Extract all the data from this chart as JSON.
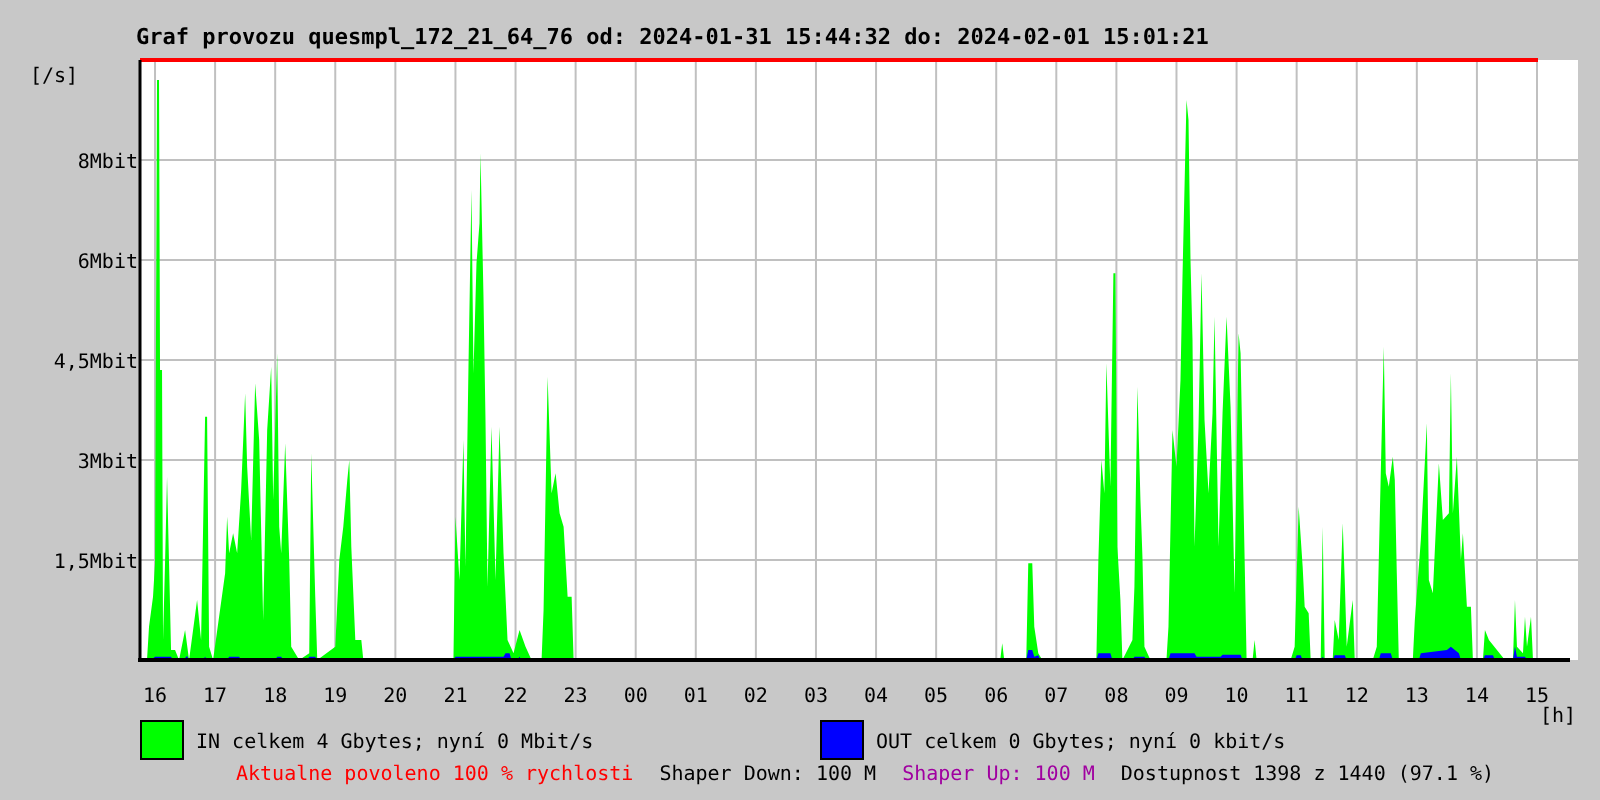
{
  "chart_data": {
    "type": "area",
    "title": "Graf provozu quesmpl_172_21_64_76 od: 2024-01-31 15:44:32 do: 2024-02-01 15:01:21",
    "ylabel": "[/s]",
    "xlabel": "[h]",
    "xlim": [
      "2024-01-31T15:45",
      "2024-02-01T15:01"
    ],
    "xticks": [
      {
        "value": "2024-01-31T16:00",
        "label": "16"
      },
      {
        "value": "2024-01-31T17:00",
        "label": "17"
      },
      {
        "value": "2024-01-31T18:00",
        "label": "18"
      },
      {
        "value": "2024-01-31T19:00",
        "label": "19"
      },
      {
        "value": "2024-01-31T20:00",
        "label": "20"
      },
      {
        "value": "2024-01-31T21:00",
        "label": "21"
      },
      {
        "value": "2024-01-31T22:00",
        "label": "22"
      },
      {
        "value": "2024-01-31T23:00",
        "label": "23"
      },
      {
        "value": "2024-02-01T00:00",
        "label": "00"
      },
      {
        "value": "2024-02-01T01:00",
        "label": "01"
      },
      {
        "value": "2024-02-01T02:00",
        "label": "02"
      },
      {
        "value": "2024-02-01T03:00",
        "label": "03"
      },
      {
        "value": "2024-02-01T04:00",
        "label": "04"
      },
      {
        "value": "2024-02-01T05:00",
        "label": "05"
      },
      {
        "value": "2024-02-01T06:00",
        "label": "06"
      },
      {
        "value": "2024-02-01T07:00",
        "label": "07"
      },
      {
        "value": "2024-02-01T08:00",
        "label": "08"
      },
      {
        "value": "2024-02-01T09:00",
        "label": "09"
      },
      {
        "value": "2024-02-01T10:00",
        "label": "10"
      },
      {
        "value": "2024-02-01T11:00",
        "label": "11"
      },
      {
        "value": "2024-02-01T12:00",
        "label": "12"
      },
      {
        "value": "2024-02-01T13:00",
        "label": "13"
      },
      {
        "value": "2024-02-01T14:00",
        "label": "14"
      },
      {
        "value": "2024-02-01T15:00",
        "label": "15"
      }
    ],
    "ylim": [
      0,
      9
    ],
    "yticks": [
      {
        "value": 1.5,
        "label": "1,5Mbit"
      },
      {
        "value": 3,
        "label": "3Mbit"
      },
      {
        "value": 4.5,
        "label": "4,5Mbit"
      },
      {
        "value": 6,
        "label": "6Mbit"
      },
      {
        "value": 7.5,
        "label": "8Mbit"
      }
    ],
    "grid": true,
    "legend": "bottom",
    "ref_lines": [
      {
        "axis": "y",
        "value": 9,
        "color": "#ff0000"
      }
    ],
    "series": [
      {
        "name": "IN celkem 4 Gbytes; nyní 0 Mbit/s",
        "color": "#00ff00",
        "x": [
          "2024-01-31T15:52",
          "2024-01-31T15:54",
          "2024-01-31T15:58",
          "2024-01-31T16:00",
          "2024-01-31T16:02",
          "2024-01-31T16:04",
          "2024-01-31T16:05",
          "2024-01-31T16:07",
          "2024-01-31T16:08",
          "2024-01-31T16:10",
          "2024-01-31T16:12",
          "2024-01-31T16:14",
          "2024-01-31T16:16",
          "2024-01-31T16:20",
          "2024-01-31T16:24",
          "2024-01-31T16:30",
          "2024-01-31T16:34",
          "2024-01-31T16:42",
          "2024-01-31T16:46",
          "2024-01-31T16:50",
          "2024-01-31T16:52",
          "2024-01-31T16:54",
          "2024-01-31T16:58",
          "2024-01-31T17:10",
          "2024-01-31T17:12",
          "2024-01-31T17:14",
          "2024-01-31T17:18",
          "2024-01-31T17:22",
          "2024-01-31T17:26",
          "2024-01-31T17:30",
          "2024-01-31T17:32",
          "2024-01-31T17:36",
          "2024-01-31T17:40",
          "2024-01-31T17:44",
          "2024-01-31T17:48",
          "2024-01-31T17:52",
          "2024-01-31T17:56",
          "2024-01-31T17:58",
          "2024-01-31T18:02",
          "2024-01-31T18:04",
          "2024-01-31T18:06",
          "2024-01-31T18:10",
          "2024-01-31T18:14",
          "2024-01-31T18:16",
          "2024-01-31T18:24",
          "2024-01-31T18:34",
          "2024-01-31T18:36",
          "2024-01-31T18:40",
          "2024-01-31T18:42",
          "2024-01-31T19:00",
          "2024-01-31T19:04",
          "2024-01-31T19:08",
          "2024-01-31T19:12",
          "2024-01-31T19:14",
          "2024-01-31T19:16",
          "2024-01-31T19:20",
          "2024-01-31T19:26",
          "2024-01-31T19:28",
          "2024-01-31T20:58",
          "2024-01-31T21:00",
          "2024-01-31T21:04",
          "2024-01-31T21:08",
          "2024-01-31T21:10",
          "2024-01-31T21:13",
          "2024-01-31T21:16",
          "2024-01-31T21:18",
          "2024-01-31T21:21",
          "2024-01-31T21:24",
          "2024-01-31T21:25",
          "2024-01-31T21:28",
          "2024-01-31T21:30",
          "2024-01-31T21:32",
          "2024-01-31T21:36",
          "2024-01-31T21:40",
          "2024-01-31T21:44",
          "2024-01-31T21:48",
          "2024-01-31T21:52",
          "2024-01-31T21:58",
          "2024-01-31T22:04",
          "2024-01-31T22:10",
          "2024-01-31T22:16",
          "2024-01-31T22:26",
          "2024-01-31T22:28",
          "2024-01-31T22:32",
          "2024-01-31T22:36",
          "2024-01-31T22:40",
          "2024-01-31T22:44",
          "2024-01-31T22:48",
          "2024-01-31T22:52",
          "2024-01-31T22:56",
          "2024-01-31T22:58",
          "2024-02-01T06:04",
          "2024-02-01T06:06",
          "2024-02-01T06:08",
          "2024-02-01T06:30",
          "2024-02-01T06:32",
          "2024-02-01T06:36",
          "2024-02-01T06:38",
          "2024-02-01T06:42",
          "2024-02-01T06:46",
          "2024-02-01T07:40",
          "2024-02-01T07:42",
          "2024-02-01T07:45",
          "2024-02-01T07:48",
          "2024-02-01T07:50",
          "2024-02-01T07:54",
          "2024-02-01T07:57",
          "2024-02-01T07:59",
          "2024-02-01T08:01",
          "2024-02-01T08:04",
          "2024-02-01T08:06",
          "2024-02-01T08:16",
          "2024-02-01T08:18",
          "2024-02-01T08:21",
          "2024-02-01T08:24",
          "2024-02-01T08:26",
          "2024-02-01T08:28",
          "2024-02-01T08:34",
          "2024-02-01T08:50",
          "2024-02-01T08:52",
          "2024-02-01T08:56",
          "2024-02-01T09:00",
          "2024-02-01T09:04",
          "2024-02-01T09:06",
          "2024-02-01T09:10",
          "2024-02-01T09:12",
          "2024-02-01T09:14",
          "2024-02-01T09:16",
          "2024-02-01T09:18",
          "2024-02-01T09:22",
          "2024-02-01T09:25",
          "2024-02-01T09:28",
          "2024-02-01T09:32",
          "2024-02-01T09:36",
          "2024-02-01T09:38",
          "2024-02-01T09:42",
          "2024-02-01T09:46",
          "2024-02-01T09:50",
          "2024-02-01T09:54",
          "2024-02-01T09:58",
          "2024-02-01T10:02",
          "2024-02-01T10:04",
          "2024-02-01T10:08",
          "2024-02-01T10:10",
          "2024-02-01T10:16",
          "2024-02-01T10:18",
          "2024-02-01T10:20",
          "2024-02-01T10:54",
          "2024-02-01T10:58",
          "2024-02-01T11:02",
          "2024-02-01T11:06",
          "2024-02-01T11:08",
          "2024-02-01T11:12",
          "2024-02-01T11:14",
          "2024-02-01T11:24",
          "2024-02-01T11:26",
          "2024-02-01T11:28",
          "2024-02-01T11:36",
          "2024-02-01T11:38",
          "2024-02-01T11:42",
          "2024-02-01T11:46",
          "2024-02-01T11:48",
          "2024-02-01T11:50",
          "2024-02-01T11:56",
          "2024-02-01T11:58",
          "2024-02-01T12:16",
          "2024-02-01T12:20",
          "2024-02-01T12:24",
          "2024-02-01T12:27",
          "2024-02-01T12:29",
          "2024-02-01T12:32",
          "2024-02-01T12:36",
          "2024-02-01T12:38",
          "2024-02-01T12:40",
          "2024-02-01T12:42",
          "2024-02-01T12:56",
          "2024-02-01T12:58",
          "2024-02-01T13:04",
          "2024-02-01T13:10",
          "2024-02-01T13:12",
          "2024-02-01T13:16",
          "2024-02-01T13:22",
          "2024-02-01T13:26",
          "2024-02-01T13:32",
          "2024-02-01T13:34",
          "2024-02-01T13:36",
          "2024-02-01T13:40",
          "2024-02-01T13:44",
          "2024-02-01T13:46",
          "2024-02-01T13:50",
          "2024-02-01T13:54",
          "2024-02-01T13:56",
          "2024-02-01T14:06",
          "2024-02-01T14:08",
          "2024-02-01T14:12",
          "2024-02-01T14:20",
          "2024-02-01T14:28",
          "2024-02-01T14:36",
          "2024-02-01T14:38",
          "2024-02-01T14:40",
          "2024-02-01T14:46",
          "2024-02-01T14:48",
          "2024-02-01T14:50",
          "2024-02-01T14:54",
          "2024-02-01T14:56",
          "2024-02-01T15:00"
        ],
        "values": [
          0,
          0.5,
          0.95,
          1.45,
          8.7,
          8.7,
          4.35,
          4.35,
          0.3,
          1.45,
          2.75,
          1.45,
          0.15,
          0.15,
          0,
          0.45,
          0,
          0.9,
          0.3,
          3.65,
          3.65,
          0.2,
          0,
          1.3,
          2.15,
          1.6,
          1.9,
          1.6,
          2.55,
          4.0,
          2.9,
          1.8,
          4.15,
          3.3,
          0.6,
          3.45,
          4.4,
          2.4,
          4.6,
          2.0,
          1.6,
          3.25,
          1.5,
          0.2,
          0,
          0.1,
          3.1,
          0.95,
          0,
          0.2,
          1.5,
          2.0,
          2.7,
          3.0,
          1.7,
          0.3,
          0.3,
          0,
          0,
          2.15,
          1.2,
          3.3,
          1.4,
          4.4,
          7.05,
          4.3,
          5.95,
          6.55,
          7.6,
          5.45,
          3.6,
          1.1,
          3.5,
          1.2,
          3.5,
          1.6,
          0.3,
          0.1,
          0.45,
          0.2,
          0,
          0,
          0.75,
          4.25,
          2.5,
          2.8,
          2.2,
          2.0,
          0.95,
          0.95,
          0,
          0,
          0.25,
          0,
          0,
          1.45,
          1.45,
          0.5,
          0.1,
          0,
          0,
          1.5,
          3.0,
          2.5,
          4.45,
          2.6,
          5.8,
          5.8,
          1.7,
          0.9,
          0,
          0.3,
          1.1,
          4.1,
          2.4,
          1.55,
          0.2,
          0,
          0,
          0.5,
          3.45,
          2.9,
          4.2,
          5.75,
          8.4,
          8.1,
          6.0,
          4.8,
          1.7,
          3.5,
          5.8,
          3.6,
          2.5,
          3.7,
          5.15,
          1.7,
          3.7,
          5.15,
          3.8,
          1.0,
          4.9,
          4.6,
          1.55,
          0,
          0,
          0.3,
          0,
          0,
          0.2,
          2.3,
          1.4,
          0.8,
          0.7,
          0,
          0,
          2.0,
          0,
          0,
          0.6,
          0.3,
          2.05,
          1.2,
          0.2,
          0.9,
          0,
          0,
          0.2,
          2.8,
          4.7,
          2.8,
          2.6,
          3.05,
          2.7,
          1.3,
          0,
          0,
          0.6,
          1.8,
          3.55,
          1.2,
          1.0,
          2.95,
          2.1,
          2.2,
          4.3,
          2.2,
          3.05,
          1.5,
          1.9,
          0.8,
          0.8,
          0,
          0,
          0.45,
          0.3,
          0.15,
          0,
          0,
          0.9,
          0.2,
          0.1,
          0.65,
          0.2,
          0.65,
          0,
          0
        ]
      },
      {
        "name": "OUT celkem 0 Gbytes; nyní 0 kbit/s",
        "color": "#0000ff",
        "x": [
          "2024-01-31T15:56",
          "2024-01-31T16:00",
          "2024-01-31T16:16",
          "2024-01-31T16:18",
          "2024-01-31T16:28",
          "2024-01-31T16:32",
          "2024-01-31T16:34",
          "2024-01-31T16:48",
          "2024-01-31T16:50",
          "2024-01-31T16:52",
          "2024-01-31T17:12",
          "2024-01-31T17:14",
          "2024-01-31T17:24",
          "2024-01-31T17:26",
          "2024-01-31T18:00",
          "2024-01-31T18:02",
          "2024-01-31T18:06",
          "2024-01-31T18:08",
          "2024-01-31T18:32",
          "2024-01-31T18:34",
          "2024-01-31T18:40",
          "2024-01-31T18:42",
          "2024-01-31T20:58",
          "2024-01-31T21:00",
          "2024-01-31T21:48",
          "2024-01-31T21:50",
          "2024-01-31T21:54",
          "2024-01-31T21:56",
          "2024-01-31T22:02",
          "2024-01-31T22:04",
          "2024-01-31T22:06",
          "2024-02-01T06:30",
          "2024-02-01T06:32",
          "2024-02-01T06:36",
          "2024-02-01T06:38",
          "2024-02-01T06:42",
          "2024-02-01T06:44",
          "2024-02-01T07:40",
          "2024-02-01T07:42",
          "2024-02-01T07:54",
          "2024-02-01T07:56",
          "2024-02-01T08:16",
          "2024-02-01T08:18",
          "2024-02-01T08:28",
          "2024-02-01T08:30",
          "2024-02-01T08:52",
          "2024-02-01T08:54",
          "2024-02-01T09:18",
          "2024-02-01T09:20",
          "2024-02-01T09:44",
          "2024-02-01T09:46",
          "2024-02-01T10:04",
          "2024-02-01T10:06",
          "2024-02-01T10:58",
          "2024-02-01T11:00",
          "2024-02-01T11:04",
          "2024-02-01T11:06",
          "2024-02-01T11:24",
          "2024-02-01T11:26",
          "2024-02-01T11:28",
          "2024-02-01T11:36",
          "2024-02-01T11:38",
          "2024-02-01T11:48",
          "2024-02-01T11:50",
          "2024-02-01T12:22",
          "2024-02-01T12:24",
          "2024-02-01T12:34",
          "2024-02-01T12:36",
          "2024-02-01T13:02",
          "2024-02-01T13:04",
          "2024-02-01T13:30",
          "2024-02-01T13:34",
          "2024-02-01T13:42",
          "2024-02-01T13:44",
          "2024-02-01T14:06",
          "2024-02-01T14:08",
          "2024-02-01T14:16",
          "2024-02-01T14:18",
          "2024-02-01T14:36",
          "2024-02-01T14:38",
          "2024-02-01T14:40",
          "2024-02-01T14:48",
          "2024-02-01T14:50"
        ],
        "values": [
          0,
          0.05,
          0.05,
          0,
          0,
          0.06,
          0,
          0,
          0.05,
          0,
          0,
          0.05,
          0.05,
          0,
          0,
          0.05,
          0.05,
          0,
          0,
          0.05,
          0.05,
          0,
          0,
          0.05,
          0.05,
          0.1,
          0.1,
          0,
          0,
          0.05,
          0,
          0,
          0.15,
          0.15,
          0.05,
          0.07,
          0,
          0,
          0.1,
          0.1,
          0,
          0,
          0.05,
          0.05,
          0,
          0,
          0.1,
          0.1,
          0.05,
          0.05,
          0.08,
          0.08,
          0,
          0,
          0.07,
          0.07,
          0,
          0,
          0.05,
          0,
          0,
          0.07,
          0.07,
          0,
          0,
          0.1,
          0.1,
          0,
          0,
          0.1,
          0.15,
          0.2,
          0.1,
          0,
          0,
          0.07,
          0.07,
          0,
          0,
          0.2,
          0.05,
          0.05,
          0
        ]
      }
    ],
    "annotations": [
      "Aktualne povoleno 100 % rychlosti",
      "Shaper Down: 100 M",
      "Shaper Up: 100 M",
      "Dostupnost 1398 z 1440 (97.1 %)"
    ]
  }
}
